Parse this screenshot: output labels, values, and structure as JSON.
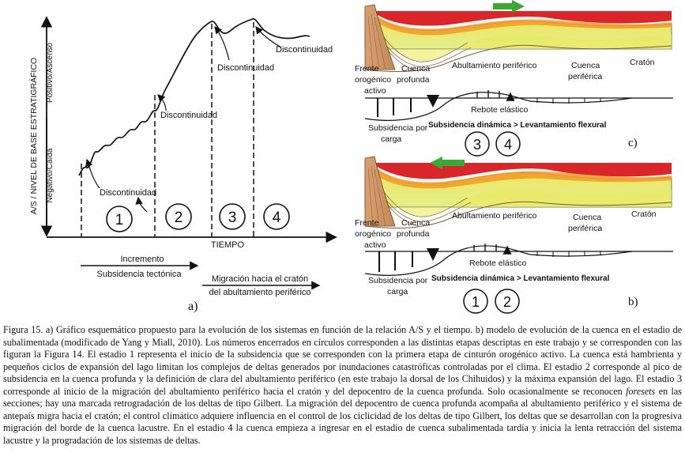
{
  "figure_a": {
    "y_axis_title": "A/S / NIVEL DE BASE ESTRATIGRÁFICO",
    "y_axis_top": "Positivo/Ascenso",
    "y_axis_bottom": "Negativo/Caída",
    "x_axis_label": "TIEMPO",
    "discontinuities": [
      "Discontinuidad",
      "Discontinuidad",
      "Discontinuidad",
      "Discontinuidad"
    ],
    "stages": [
      "1",
      "2",
      "3",
      "4"
    ],
    "increment_label": "Incremento",
    "subsidence_label": "Subsidencia tectónica",
    "migration_line1": "Migración hacia el cratón",
    "migration_line2": "del abultamiento periférico",
    "panel_label": "a)"
  },
  "figure_c": {
    "frente_1": "Frente",
    "frente_2": "orogénico",
    "frente_3": "activo",
    "cuenca_profunda_1": "Cuenca",
    "cuenca_profunda_2": "profunda",
    "abultamiento": "Abultamiento periférico",
    "cuenca_periferica_1": "Cuenca",
    "cuenca_periferica_2": "periférica",
    "craton": "Cratón",
    "rebote": "Rebote elástico",
    "subsidencia_1": "Subsidencia por",
    "subsidencia_2": "carga",
    "dinamica": "Subsidencia dinámica > Levantamiento flexural",
    "stages": [
      "3",
      "4"
    ],
    "panel_label": "c)"
  },
  "figure_b": {
    "frente_1": "Frente",
    "frente_2": "orogénico",
    "frente_3": "activo",
    "cuenca_profunda_1": "Cuenca",
    "cuenca_profunda_2": "profunda",
    "abultamiento": "Abultamiento periférico",
    "cuenca_periferica_1": "Cuenca",
    "cuenca_periferica_2": "periférica",
    "craton": "Cratón",
    "rebote": "Rebote elástico",
    "subsidencia_1": "Subsidencia por",
    "subsidencia_2": "carga",
    "dinamica": "Subsidencia dinámica > Levantamiento flexural",
    "stages": [
      "1",
      "2"
    ],
    "panel_label": "b)"
  },
  "caption": {
    "part1": "Figura 15. a) Gráfico esquemático propuesto para la evolución de los sistemas en función de la relación A/S y el tiempo. b) modelo de evolución de la cuenca en el estadio de subalimentada (modificado de Yang y Miall, 2010). Los números encerrados en círculos corresponden a las distintas etapas descriptas en este trabajo y se corresponden con las figuran la Figura 14. El estadio 1 representa el inicio de la subsidencia que se corresponden con la primera etapa de cinturón orogénico activo. La cuenca está hambrienta y pequeños ciclos de expansión del lago limitan los complejos de deltas generados por inundaciones catastróficas controladas por el clima. El estadio 2 corresponde al pico de subsidencia en la cuenca profunda y la definición de clara del abultamiento periférico (en este trabajo la dorsal de los Chihuidos) y la máxima expansión del lago. El estadio 3 corresponde al inicio de la migración del abultamiento periférico hacia el cratón y del depocentro de la cuenca profunda. Solo ocasionalmente se reconocen ",
    "italic": "foresets",
    "part2": " en las secciones; hay una marcada retrogradación de los deltas de tipo Gilbert. La migración del depocentro de cuenca profunda acompaña al abultamiento periférico y el sistema de antepaís migra hacia el cratón; el control climático adquiere influencia en el control de los ciclicidad de los deltas de tipo Gilbert, los deltas que se desarrollan con la progresiva migración del borde de la cuenca lacustre. En el estadio 4 la cuenca empieza a ingresar en el estadio de cuenca subalimentada tardía y inicia la lenta retracción del sistema lacustre y la progradación de los sistemas de deltas."
  },
  "colors": {
    "red_layer": "#d8262b",
    "orange_layer": "#f39a25",
    "yellow_layer": "#f4ea3e",
    "green_arrow": "#3aa935"
  },
  "icons": [
    "arrow-right-icon",
    "arrow-left-icon"
  ]
}
